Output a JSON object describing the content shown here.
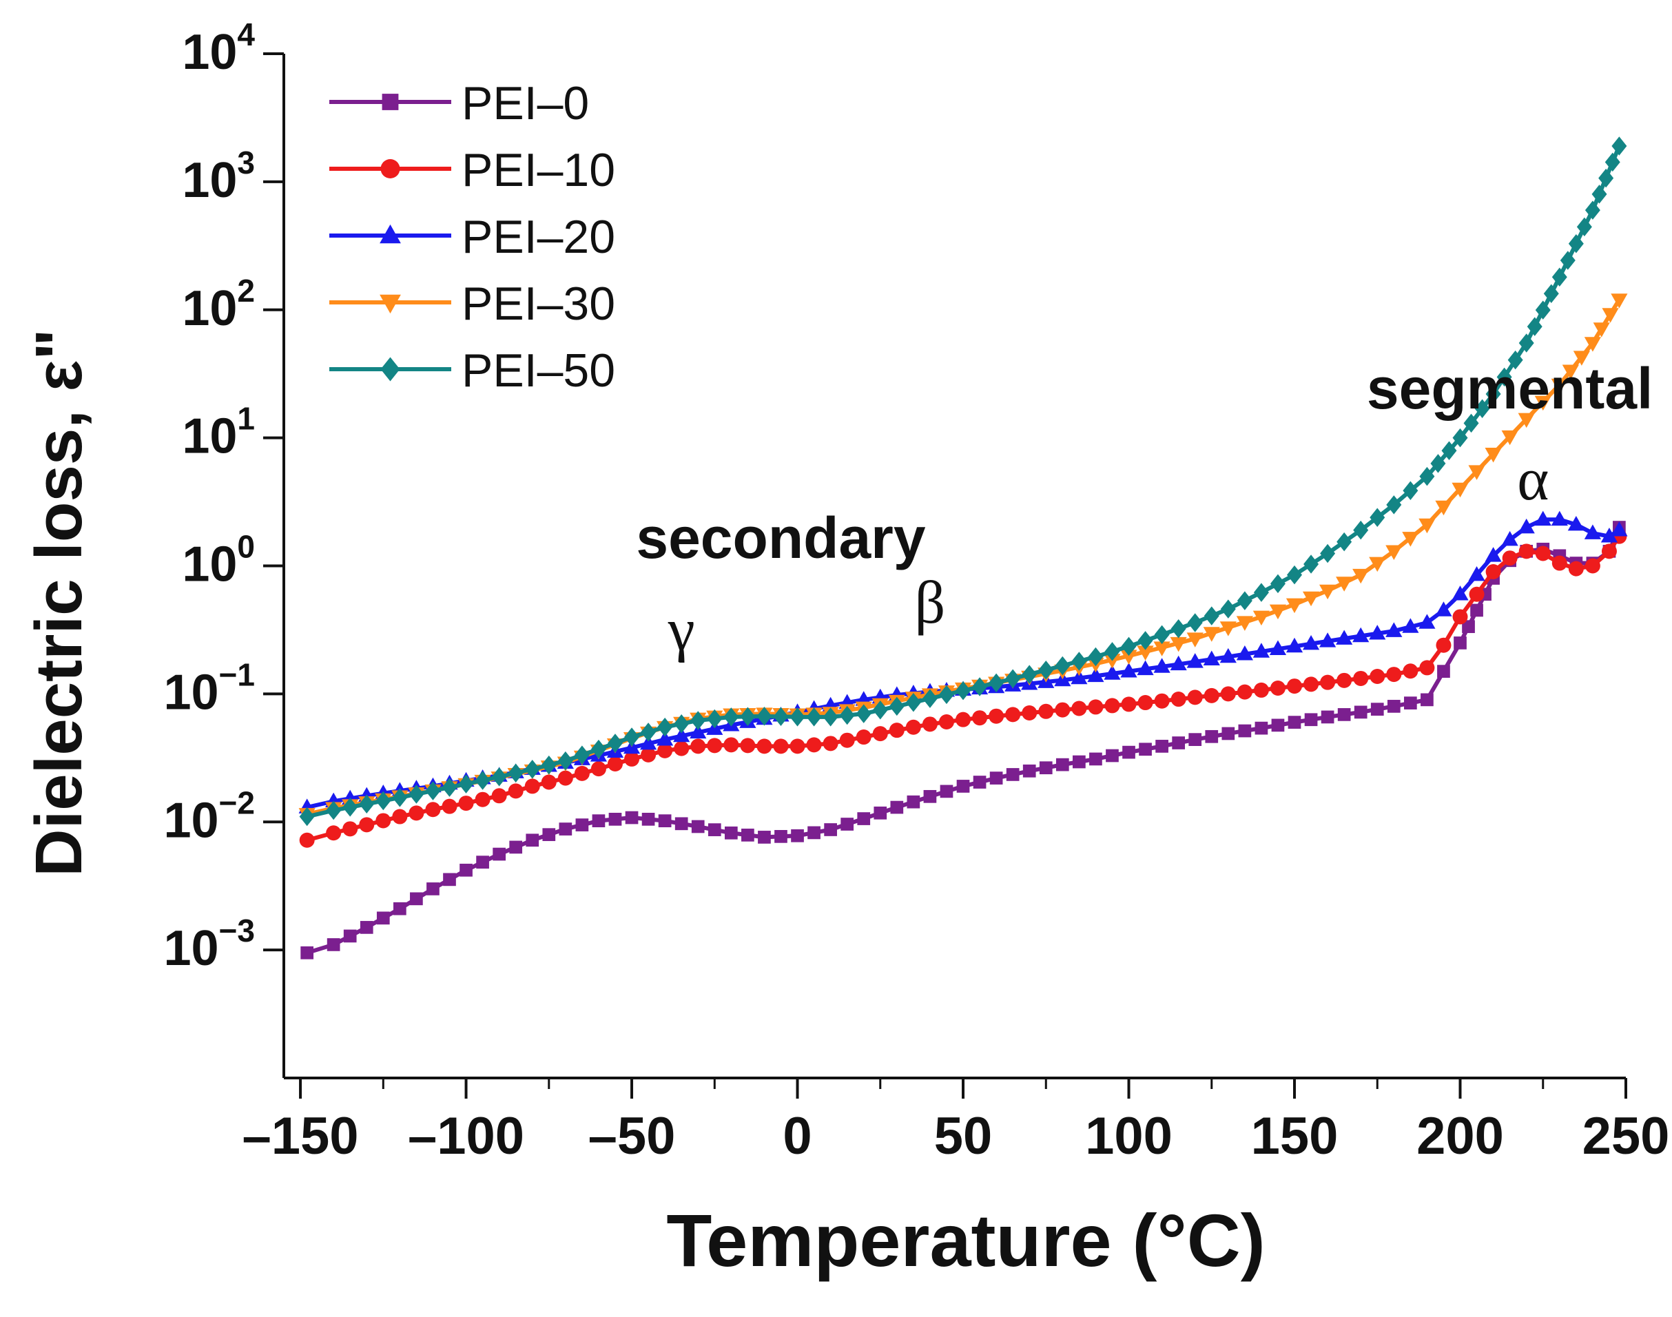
{
  "chart_data": {
    "type": "scatter",
    "title": "",
    "xlabel": "Temperature (°C)",
    "ylabel": "Dielectric loss, ε\"",
    "xlim": [
      -155,
      250
    ],
    "ylim_log10": [
      -4,
      4
    ],
    "yscale": "log",
    "x_ticks": [
      -150,
      -100,
      -50,
      0,
      50,
      100,
      150,
      200,
      250
    ],
    "x_tick_labels": [
      "–150",
      "–100",
      "–50",
      "0",
      "50",
      "100",
      "150",
      "200",
      "250"
    ],
    "y_ticks": [
      {
        "base": "10",
        "exp": "4",
        "value": 4
      },
      {
        "base": "10",
        "exp": "3",
        "value": 3
      },
      {
        "base": "10",
        "exp": "2",
        "value": 2
      },
      {
        "base": "10",
        "exp": "1",
        "value": 1
      },
      {
        "base": "10",
        "exp": "0",
        "value": 0
      },
      {
        "base": "10",
        "exp": "−1",
        "value": -1
      },
      {
        "base": "10",
        "exp": "−2",
        "value": -2
      },
      {
        "base": "10",
        "exp": "−3",
        "value": -3
      }
    ],
    "legend_position": "top-left",
    "annotations": [
      {
        "text": "secondary",
        "style": "bold",
        "x": -5,
        "y": 1.15
      },
      {
        "text": "γ",
        "style": "greek",
        "x": -35,
        "y": 0.22
      },
      {
        "text": "β",
        "style": "greek",
        "x": 40,
        "y": 0.36
      },
      {
        "text": "segmental",
        "style": "bold",
        "x": 215,
        "y": 17
      },
      {
        "text": "α",
        "style": "greek",
        "x": 222,
        "y": 3.3
      }
    ],
    "series": [
      {
        "name": "PEI–0",
        "color": "#7b1f8f",
        "marker": "square",
        "points": [
          [
            -148,
            0.00095
          ],
          [
            -140,
            0.0011
          ],
          [
            -130,
            0.0015
          ],
          [
            -120,
            0.0021
          ],
          [
            -110,
            0.003
          ],
          [
            -100,
            0.0042
          ],
          [
            -90,
            0.0056
          ],
          [
            -80,
            0.0072
          ],
          [
            -70,
            0.0088
          ],
          [
            -60,
            0.0102
          ],
          [
            -50,
            0.0108
          ],
          [
            -40,
            0.0102
          ],
          [
            -30,
            0.0092
          ],
          [
            -20,
            0.0082
          ],
          [
            -10,
            0.0076
          ],
          [
            0,
            0.0078
          ],
          [
            10,
            0.0087
          ],
          [
            20,
            0.0106
          ],
          [
            30,
            0.013
          ],
          [
            40,
            0.0158
          ],
          [
            50,
            0.019
          ],
          [
            60,
            0.022
          ],
          [
            70,
            0.025
          ],
          [
            80,
            0.028
          ],
          [
            90,
            0.031
          ],
          [
            100,
            0.035
          ],
          [
            110,
            0.039
          ],
          [
            120,
            0.044
          ],
          [
            130,
            0.049
          ],
          [
            140,
            0.054
          ],
          [
            150,
            0.06
          ],
          [
            160,
            0.066
          ],
          [
            170,
            0.072
          ],
          [
            180,
            0.08
          ],
          [
            190,
            0.09
          ],
          [
            195,
            0.15
          ],
          [
            200,
            0.25
          ],
          [
            205,
            0.45
          ],
          [
            210,
            0.8
          ],
          [
            215,
            1.1
          ],
          [
            220,
            1.3
          ],
          [
            225,
            1.35
          ],
          [
            230,
            1.2
          ],
          [
            235,
            1.05
          ],
          [
            240,
            1.05
          ],
          [
            245,
            1.3
          ],
          [
            248,
            2.0
          ]
        ]
      },
      {
        "name": "PEI–10",
        "color": "#ee1c1c",
        "marker": "circle",
        "points": [
          [
            -148,
            0.0072
          ],
          [
            -140,
            0.0082
          ],
          [
            -130,
            0.0095
          ],
          [
            -120,
            0.011
          ],
          [
            -110,
            0.0125
          ],
          [
            -100,
            0.014
          ],
          [
            -90,
            0.016
          ],
          [
            -80,
            0.019
          ],
          [
            -70,
            0.022
          ],
          [
            -60,
            0.026
          ],
          [
            -50,
            0.031
          ],
          [
            -40,
            0.036
          ],
          [
            -30,
            0.039
          ],
          [
            -20,
            0.04
          ],
          [
            -10,
            0.039
          ],
          [
            0,
            0.039
          ],
          [
            10,
            0.041
          ],
          [
            20,
            0.046
          ],
          [
            30,
            0.052
          ],
          [
            40,
            0.058
          ],
          [
            50,
            0.063
          ],
          [
            60,
            0.067
          ],
          [
            70,
            0.071
          ],
          [
            80,
            0.075
          ],
          [
            90,
            0.079
          ],
          [
            100,
            0.083
          ],
          [
            110,
            0.088
          ],
          [
            120,
            0.094
          ],
          [
            130,
            0.1
          ],
          [
            140,
            0.107
          ],
          [
            150,
            0.115
          ],
          [
            160,
            0.123
          ],
          [
            170,
            0.132
          ],
          [
            180,
            0.142
          ],
          [
            190,
            0.16
          ],
          [
            195,
            0.24
          ],
          [
            200,
            0.4
          ],
          [
            205,
            0.6
          ],
          [
            210,
            0.9
          ],
          [
            215,
            1.15
          ],
          [
            220,
            1.3
          ],
          [
            225,
            1.25
          ],
          [
            230,
            1.05
          ],
          [
            235,
            0.95
          ],
          [
            240,
            1.0
          ],
          [
            245,
            1.3
          ],
          [
            248,
            1.7
          ]
        ]
      },
      {
        "name": "PEI–20",
        "color": "#1a1aee",
        "marker": "triangle-up",
        "points": [
          [
            -148,
            0.013
          ],
          [
            -140,
            0.0145
          ],
          [
            -130,
            0.016
          ],
          [
            -120,
            0.0175
          ],
          [
            -110,
            0.019
          ],
          [
            -100,
            0.021
          ],
          [
            -90,
            0.023
          ],
          [
            -80,
            0.026
          ],
          [
            -70,
            0.029
          ],
          [
            -60,
            0.033
          ],
          [
            -50,
            0.038
          ],
          [
            -40,
            0.044
          ],
          [
            -30,
            0.05
          ],
          [
            -20,
            0.057
          ],
          [
            -10,
            0.064
          ],
          [
            0,
            0.072
          ],
          [
            10,
            0.081
          ],
          [
            20,
            0.09
          ],
          [
            30,
            0.098
          ],
          [
            40,
            0.104
          ],
          [
            50,
            0.108
          ],
          [
            60,
            0.113
          ],
          [
            70,
            0.12
          ],
          [
            80,
            0.128
          ],
          [
            90,
            0.138
          ],
          [
            100,
            0.15
          ],
          [
            110,
            0.163
          ],
          [
            120,
            0.178
          ],
          [
            130,
            0.195
          ],
          [
            140,
            0.214
          ],
          [
            150,
            0.235
          ],
          [
            160,
            0.258
          ],
          [
            170,
            0.283
          ],
          [
            180,
            0.31
          ],
          [
            190,
            0.36
          ],
          [
            195,
            0.45
          ],
          [
            200,
            0.6
          ],
          [
            205,
            0.85
          ],
          [
            210,
            1.2
          ],
          [
            215,
            1.6
          ],
          [
            220,
            2.0
          ],
          [
            225,
            2.3
          ],
          [
            230,
            2.3
          ],
          [
            235,
            2.1
          ],
          [
            240,
            1.8
          ],
          [
            245,
            1.7
          ],
          [
            248,
            1.9
          ]
        ]
      },
      {
        "name": "PEI–30",
        "color": "#ff8c1a",
        "marker": "triangle-down",
        "points": [
          [
            -148,
            0.0115
          ],
          [
            -140,
            0.0128
          ],
          [
            -130,
            0.0142
          ],
          [
            -120,
            0.0158
          ],
          [
            -110,
            0.0176
          ],
          [
            -100,
            0.0197
          ],
          [
            -90,
            0.0222
          ],
          [
            -80,
            0.0252
          ],
          [
            -70,
            0.029
          ],
          [
            -60,
            0.036
          ],
          [
            -50,
            0.045
          ],
          [
            -40,
            0.055
          ],
          [
            -30,
            0.064
          ],
          [
            -20,
            0.069
          ],
          [
            -10,
            0.07
          ],
          [
            0,
            0.069
          ],
          [
            10,
            0.071
          ],
          [
            20,
            0.078
          ],
          [
            30,
            0.088
          ],
          [
            40,
            0.099
          ],
          [
            50,
            0.11
          ],
          [
            60,
            0.122
          ],
          [
            70,
            0.136
          ],
          [
            80,
            0.152
          ],
          [
            90,
            0.172
          ],
          [
            100,
            0.198
          ],
          [
            110,
            0.23
          ],
          [
            120,
            0.27
          ],
          [
            130,
            0.33
          ],
          [
            140,
            0.4
          ],
          [
            150,
            0.5
          ],
          [
            160,
            0.64
          ],
          [
            170,
            0.85
          ],
          [
            180,
            1.3
          ],
          [
            190,
            2.1
          ],
          [
            200,
            4.0
          ],
          [
            210,
            7.5
          ],
          [
            220,
            14
          ],
          [
            230,
            26
          ],
          [
            240,
            55
          ],
          [
            248,
            120
          ]
        ]
      },
      {
        "name": "PEI–50",
        "color": "#138585",
        "marker": "diamond",
        "points": [
          [
            -148,
            0.011
          ],
          [
            -140,
            0.0123
          ],
          [
            -130,
            0.0138
          ],
          [
            -120,
            0.0155
          ],
          [
            -110,
            0.0175
          ],
          [
            -100,
            0.0198
          ],
          [
            -90,
            0.0225
          ],
          [
            -80,
            0.0258
          ],
          [
            -70,
            0.03
          ],
          [
            -60,
            0.037
          ],
          [
            -50,
            0.046
          ],
          [
            -40,
            0.055
          ],
          [
            -30,
            0.062
          ],
          [
            -20,
            0.066
          ],
          [
            -10,
            0.067
          ],
          [
            0,
            0.066
          ],
          [
            10,
            0.066
          ],
          [
            20,
            0.07
          ],
          [
            30,
            0.08
          ],
          [
            40,
            0.092
          ],
          [
            50,
            0.106
          ],
          [
            60,
            0.122
          ],
          [
            70,
            0.142
          ],
          [
            80,
            0.166
          ],
          [
            90,
            0.195
          ],
          [
            100,
            0.235
          ],
          [
            110,
            0.29
          ],
          [
            120,
            0.36
          ],
          [
            130,
            0.46
          ],
          [
            140,
            0.62
          ],
          [
            150,
            0.85
          ],
          [
            160,
            1.25
          ],
          [
            170,
            1.9
          ],
          [
            180,
            3.0
          ],
          [
            190,
            5.0
          ],
          [
            200,
            10
          ],
          [
            210,
            22
          ],
          [
            220,
            55
          ],
          [
            230,
            180
          ],
          [
            240,
            600
          ],
          [
            248,
            1900
          ]
        ]
      }
    ]
  }
}
